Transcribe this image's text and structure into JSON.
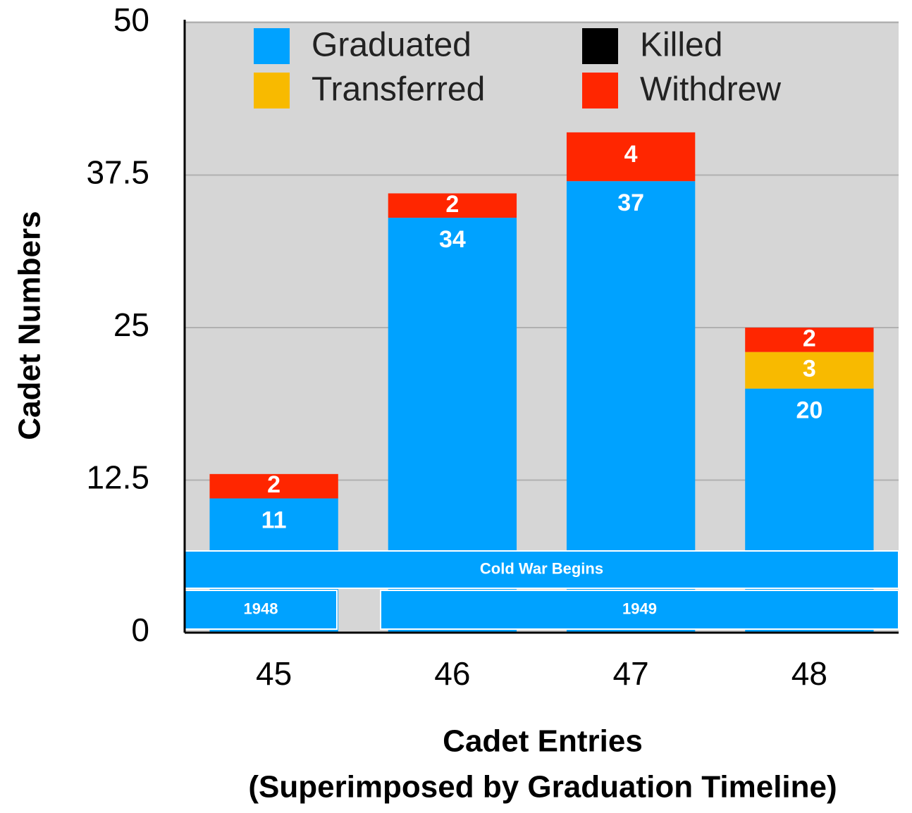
{
  "chart_data": {
    "type": "stacked_bar",
    "x_label": "Cadet Entries",
    "x_sublabel": "(Superimposed by Graduation Timeline)",
    "y_label": "Cadet Numbers",
    "categories": [
      "45",
      "46",
      "47",
      "48"
    ],
    "series": [
      {
        "name": "Graduated",
        "color": "#00a2ff",
        "values": [
          11,
          34,
          37,
          20
        ]
      },
      {
        "name": "Killed",
        "color": "#000000",
        "values": [
          null,
          null,
          null,
          null
        ]
      },
      {
        "name": "Transferred",
        "color": "#f8ba00",
        "values": [
          null,
          null,
          null,
          3
        ]
      },
      {
        "name": "Withdrew",
        "color": "#ff2600",
        "values": [
          2,
          2,
          4,
          2
        ]
      }
    ],
    "ylim": [
      0,
      50
    ],
    "yticks": [
      0,
      12.5,
      25,
      37.5,
      50
    ],
    "grid": true,
    "legend": "top",
    "annotations": [
      "Cold War Begins",
      "1948",
      "1949"
    ]
  }
}
